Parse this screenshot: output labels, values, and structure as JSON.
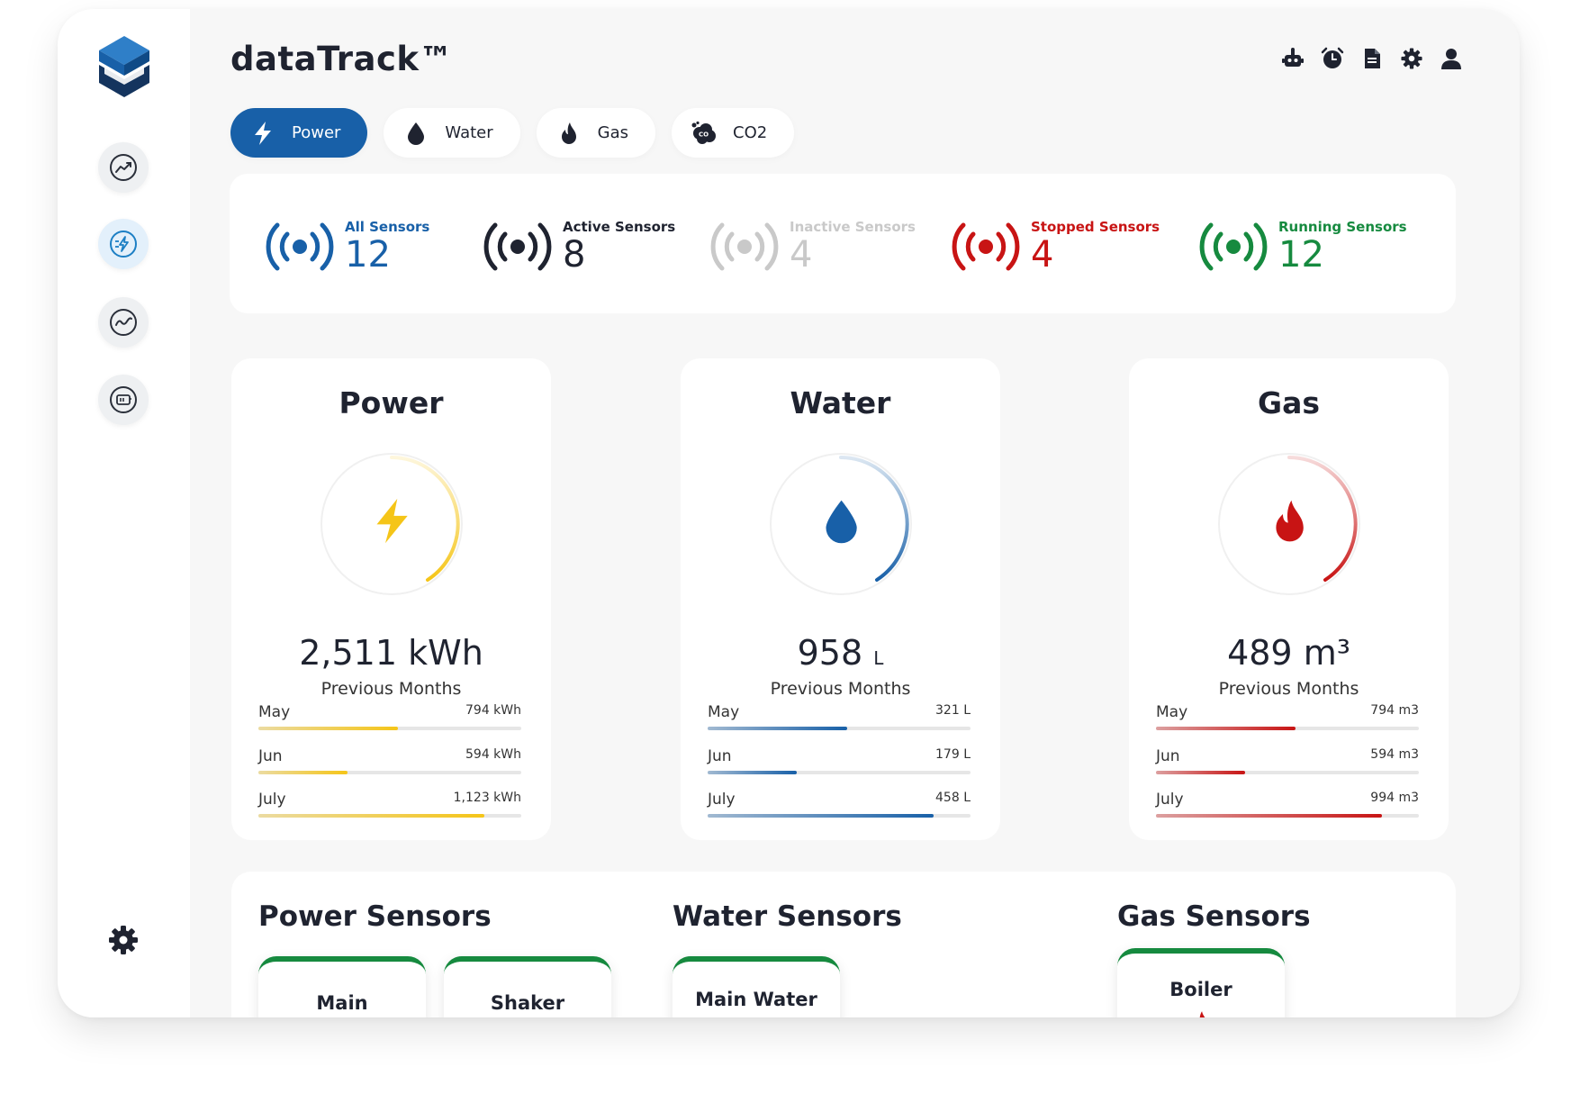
{
  "app": {
    "title": "dataTrack™"
  },
  "header_icons": [
    "robot-icon",
    "alarm-clock-icon",
    "document-icon",
    "gear-icon",
    "user-icon"
  ],
  "sidebar": {
    "items": [
      "trend-up-icon",
      "energy-icon",
      "trend-wave-icon",
      "meter-icon"
    ],
    "active_index": 1,
    "bottom": "gear-icon"
  },
  "tabs": [
    {
      "label": "Power",
      "icon": "bolt-icon",
      "active": true
    },
    {
      "label": "Water",
      "icon": "drop-icon",
      "active": false
    },
    {
      "label": "Gas",
      "icon": "flame-icon",
      "active": false
    },
    {
      "label": "CO2",
      "icon": "co2-cloud-icon",
      "active": false
    }
  ],
  "sensor_summary": [
    {
      "label": "All Sensors",
      "count": "12",
      "color": "#1860a8"
    },
    {
      "label": "Active Sensors",
      "count": "8",
      "color": "#1f2330"
    },
    {
      "label": "Inactive Sensors",
      "count": "4",
      "color": "#c9c9c9"
    },
    {
      "label": "Stopped Sensors",
      "count": "4",
      "color": "#c81414"
    },
    {
      "label": "Running Sensors",
      "count": "12",
      "color": "#168a3f"
    }
  ],
  "meters": [
    {
      "title": "Power",
      "value": "2,511",
      "unit": "kWh",
      "caption": "Previous Months",
      "color": "#f5c518",
      "months": [
        {
          "label": "May",
          "value": "794 kWh",
          "fraction": 0.53
        },
        {
          "label": "Jun",
          "value": "594 kWh",
          "fraction": 0.34
        },
        {
          "label": "July",
          "value": "1,123 kWh",
          "fraction": 0.86
        }
      ]
    },
    {
      "title": "Water",
      "value": "958",
      "unit": "L",
      "caption": "Previous Months",
      "color": "#1860a8",
      "months": [
        {
          "label": "May",
          "value": "321 L",
          "fraction": 0.53
        },
        {
          "label": "Jun",
          "value": "179 L",
          "fraction": 0.34
        },
        {
          "label": "July",
          "value": "458 L",
          "fraction": 0.86
        }
      ]
    },
    {
      "title": "Gas",
      "value": "489",
      "unit": "m³",
      "caption": "Previous Months",
      "color": "#c81414",
      "months": [
        {
          "label": "May",
          "value": "794 m3",
          "fraction": 0.53
        },
        {
          "label": "Jun",
          "value": "594 m3",
          "fraction": 0.34
        },
        {
          "label": "July",
          "value": "994 m3",
          "fraction": 0.86
        }
      ]
    }
  ],
  "sensor_sections": [
    {
      "title": "Power Sensors",
      "cards": [
        "Main",
        "Shaker"
      ]
    },
    {
      "title": "Water Sensors",
      "cards": [
        "Main Water"
      ]
    },
    {
      "title": "Gas Sensors",
      "cards": [
        "Boiler"
      ]
    }
  ]
}
